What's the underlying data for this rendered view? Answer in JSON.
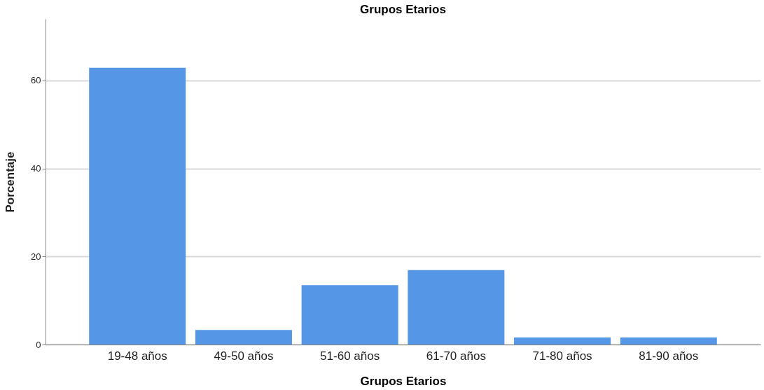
{
  "chart_data": {
    "type": "bar",
    "title": "Grupos Etarios",
    "xlabel": "Grupos Etarios",
    "ylabel": "Porcentaje",
    "categories": [
      "19-48 años",
      "49-50 años",
      "51-60 años",
      "61-70 años",
      "71-80 años",
      "81-90 años"
    ],
    "values": [
      62.9,
      3.3,
      13.5,
      16.9,
      1.6,
      1.6
    ],
    "color": "#5596e6",
    "ylim": [
      0,
      74
    ],
    "yticks": [
      0,
      20,
      40,
      60
    ],
    "grid": "y"
  }
}
